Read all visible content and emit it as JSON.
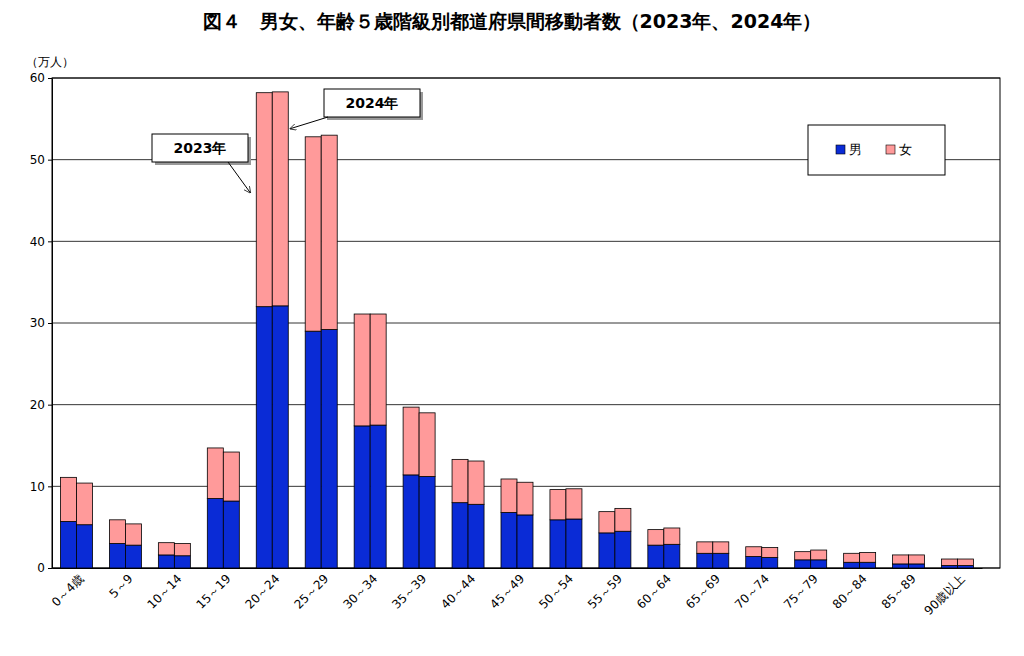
{
  "chart_data": {
    "type": "bar",
    "title": "図４　男女、年齢５歳階級別都道府県間移動者数（2023年、2024年）",
    "y_label": "（万人）",
    "categories": [
      "0～4歳",
      "5～9",
      "10～14",
      "15～19",
      "20～24",
      "25～29",
      "30～34",
      "35～39",
      "40～44",
      "45～49",
      "50～54",
      "55～59",
      "60～64",
      "65～69",
      "70～74",
      "75～79",
      "80～84",
      "85～89",
      "90歳以上"
    ],
    "groups": [
      "2023年",
      "2024年"
    ],
    "series": [
      {
        "name": "男",
        "color": "#0a2bd6",
        "values": [
          [
            5.7,
            3.0,
            1.6,
            8.5,
            32.0,
            29.0,
            17.4,
            11.4,
            8.0,
            6.8,
            5.9,
            4.3,
            2.8,
            1.8,
            1.4,
            1.0,
            0.7,
            0.5,
            0.3
          ],
          [
            5.3,
            2.8,
            1.5,
            8.2,
            32.1,
            29.2,
            17.5,
            11.2,
            7.8,
            6.5,
            6.0,
            4.5,
            2.9,
            1.8,
            1.3,
            1.0,
            0.7,
            0.5,
            0.3
          ]
        ]
      },
      {
        "name": "女",
        "color": "#ff9a9a",
        "values": [
          [
            5.4,
            2.9,
            1.5,
            6.2,
            26.2,
            23.8,
            13.7,
            8.3,
            5.3,
            4.1,
            3.7,
            2.6,
            1.9,
            1.4,
            1.2,
            1.0,
            1.1,
            1.1,
            0.8
          ],
          [
            5.1,
            2.6,
            1.5,
            6.0,
            26.2,
            23.8,
            13.6,
            7.8,
            5.3,
            4.0,
            3.7,
            2.8,
            2.0,
            1.4,
            1.2,
            1.2,
            1.2,
            1.1,
            0.8
          ]
        ]
      }
    ],
    "stacked": true,
    "ylim": [
      0,
      60
    ],
    "yticks": [
      0,
      10,
      20,
      30,
      40,
      50,
      60
    ],
    "grid": true,
    "legend": "top-right"
  }
}
